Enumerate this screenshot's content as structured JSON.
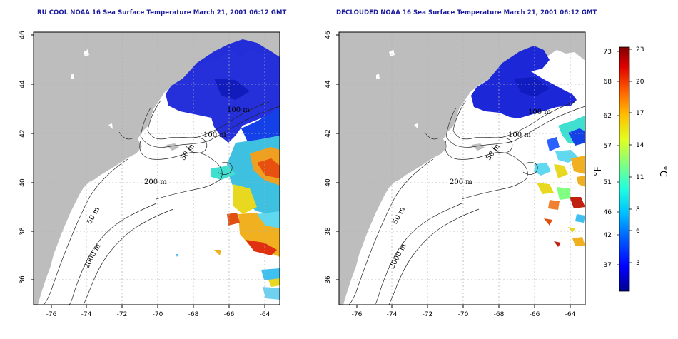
{
  "panels": [
    {
      "id": "left",
      "title": "RU COOL NOAA 16 Sea Surface Temperature March 21, 2001 06:12 GMT",
      "x_ticks": [
        "-76",
        "-74",
        "-72",
        "-70",
        "-68",
        "-66",
        "-64"
      ],
      "y_ticks": [
        "36",
        "38",
        "40",
        "42",
        "44",
        "46"
      ],
      "contour_labels": [
        "100 m",
        "100 m",
        "50 m",
        "200 m",
        "50 m",
        "2000 m"
      ]
    },
    {
      "id": "right",
      "title": "DECLOUDED NOAA 16 Sea Surface Temperature March 21, 2001 06:12 GMT",
      "x_ticks": [
        "-76",
        "-74",
        "-72",
        "-70",
        "-68",
        "-66",
        "-64"
      ],
      "y_ticks": [
        "36",
        "38",
        "40",
        "42",
        "44",
        "46"
      ],
      "contour_labels": [
        "100 m",
        "100 m",
        "50 m",
        "200 m",
        "50 m",
        "2000 m"
      ]
    }
  ],
  "colorbar": {
    "fahrenheit_ticks": [
      "73",
      "68",
      "62",
      "57",
      "51",
      "46",
      "42",
      "37"
    ],
    "celsius_ticks": [
      "23",
      "20",
      "17",
      "14",
      "11",
      "8",
      "6",
      "3"
    ],
    "fahrenheit_unit": "°F",
    "celsius_unit": "°C",
    "color_stops": [
      "#00008f",
      "#0000ff",
      "#0060ff",
      "#00c0ff",
      "#20ffdf",
      "#80ff80",
      "#dfff20",
      "#ffc000",
      "#ff6000",
      "#e00000",
      "#800000"
    ]
  },
  "colors": {
    "land": "#bdbdbd",
    "ocean": "#ffffff",
    "grid": "#b0b0b0",
    "title": "#1a1a9c",
    "contour": "#222222"
  }
}
